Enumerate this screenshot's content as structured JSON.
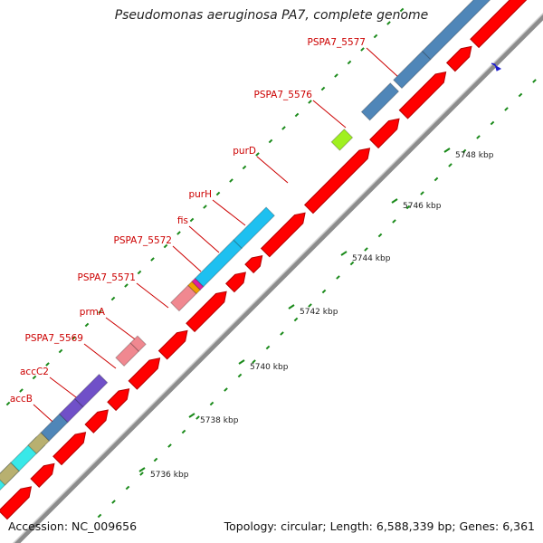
{
  "title": "Pseudomonas aeruginosa PA7, complete genome",
  "footer": {
    "accession": "Accession: NC_009656",
    "topology": "Topology: circular; Length: 6,588,339 bp; Genes: 6,361"
  },
  "kbp_ticks": [
    "5736 kbp",
    "5738 kbp",
    "5740 kbp",
    "5742 kbp",
    "5744 kbp",
    "5746 kbp",
    "5748 kbp"
  ],
  "gene_labels": [
    "accB",
    "accC2",
    "PSPA7_5569",
    "prmA",
    "PSPA7_5571",
    "PSPA7_5572",
    "fis",
    "purH",
    "purD",
    "PSPA7_5576",
    "PSPA7_5577"
  ],
  "colors": {
    "cds_red": "#ff0000",
    "cog_blue": "#4f86b8",
    "cog_cyan": "#1ec0f0",
    "cog_pink": "#f08890",
    "cog_purple": "#7050c8",
    "cog_lime": "#a0f020",
    "cog_olive": "#b8b070",
    "cog_aqua": "#38e8e8",
    "cog_orange": "#f0a000",
    "cog_magenta": "#e020a0",
    "tick_green": "#1a8a1a",
    "label_red": "#cc0000",
    "marker_blue": "#1a1ad0"
  }
}
